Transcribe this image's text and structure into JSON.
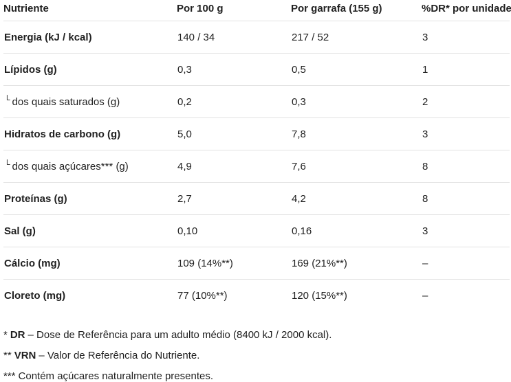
{
  "table": {
    "columns": [
      "Nutriente",
      "Por 100 g",
      "Por garrafa (155 g)",
      "%DR* por unidade"
    ],
    "sub_prefix": "└",
    "rows": [
      {
        "label": "Energia (kJ / kcal)",
        "sub": false,
        "per100": "140 / 34",
        "per_bottle": "217 / 52",
        "dr": "3"
      },
      {
        "label": "Lípidos (g)",
        "sub": false,
        "per100": "0,3",
        "per_bottle": "0,5",
        "dr": "1"
      },
      {
        "label": "dos quais saturados (g)",
        "sub": true,
        "per100": "0,2",
        "per_bottle": "0,3",
        "dr": "2"
      },
      {
        "label": "Hidratos de carbono (g)",
        "sub": false,
        "per100": "5,0",
        "per_bottle": "7,8",
        "dr": "3"
      },
      {
        "label": "dos quais açúcares*** (g)",
        "sub": true,
        "per100": "4,9",
        "per_bottle": "7,6",
        "dr": "8"
      },
      {
        "label": "Proteínas (g)",
        "sub": false,
        "per100": "2,7",
        "per_bottle": "4,2",
        "dr": "8"
      },
      {
        "label": "Sal (g)",
        "sub": false,
        "per100": "0,10",
        "per_bottle": "0,16",
        "dr": "3"
      },
      {
        "label": "Cálcio (mg)",
        "sub": false,
        "per100": "109 (14%**)",
        "per_bottle": "169 (21%**)",
        "dr": "–"
      },
      {
        "label": "Cloreto (mg)",
        "sub": false,
        "per100": "77 (10%**)",
        "per_bottle": "120 (15%**)",
        "dr": "–"
      }
    ]
  },
  "footnotes": [
    {
      "marker": "*",
      "term": "DR",
      "rest": "– Dose de Referência para um adulto médio (8400 kJ / 2000 kcal)."
    },
    {
      "marker": "**",
      "term": "VRN",
      "rest": "– Valor de Referência do Nutriente."
    },
    {
      "marker": "***",
      "term": "",
      "rest": "Contém açúcares naturalmente presentes."
    }
  ],
  "colors": {
    "text": "#212121",
    "divider": "#e2e2e2",
    "background": "#ffffff"
  }
}
